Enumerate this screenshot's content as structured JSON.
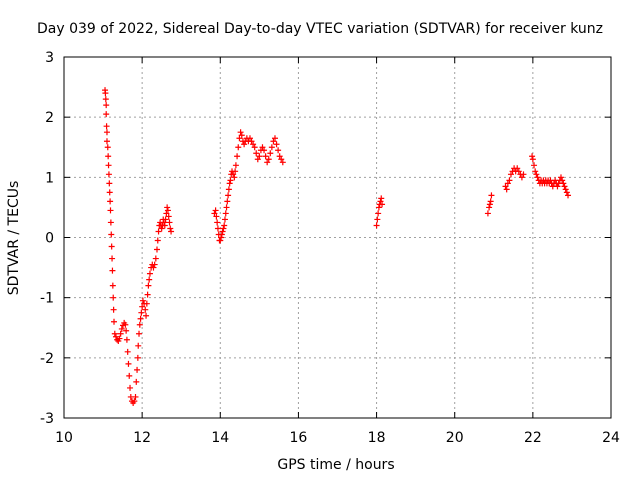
{
  "chart_data": {
    "type": "scatter",
    "title": "Day 039 of 2022, Sidereal Day-to-day VTEC variation (SDTVAR) for receiver kunz",
    "xlabel": "GPS time / hours",
    "ylabel": "SDTVAR / TECUs",
    "xlim": [
      10,
      24
    ],
    "ylim": [
      -3,
      3
    ],
    "xticks": [
      10,
      12,
      14,
      16,
      18,
      20,
      22,
      24
    ],
    "yticks": [
      -3,
      -2,
      -1,
      0,
      1,
      2,
      3
    ],
    "grid": true,
    "marker": "+",
    "color": "#ff0000",
    "series": [
      {
        "name": "SDTVAR",
        "points": [
          [
            11.05,
            2.45
          ],
          [
            11.06,
            2.4
          ],
          [
            11.07,
            2.3
          ],
          [
            11.08,
            2.2
          ],
          [
            11.08,
            2.05
          ],
          [
            11.09,
            1.85
          ],
          [
            11.1,
            1.75
          ],
          [
            11.1,
            1.6
          ],
          [
            11.12,
            1.5
          ],
          [
            11.13,
            1.35
          ],
          [
            11.14,
            1.2
          ],
          [
            11.15,
            1.05
          ],
          [
            11.16,
            0.9
          ],
          [
            11.17,
            0.75
          ],
          [
            11.18,
            0.6
          ],
          [
            11.19,
            0.45
          ],
          [
            11.2,
            0.25
          ],
          [
            11.21,
            0.05
          ],
          [
            11.22,
            -0.15
          ],
          [
            11.23,
            -0.35
          ],
          [
            11.24,
            -0.55
          ],
          [
            11.25,
            -0.8
          ],
          [
            11.26,
            -1.0
          ],
          [
            11.27,
            -1.2
          ],
          [
            11.28,
            -1.4
          ],
          [
            11.3,
            -1.6
          ],
          [
            11.33,
            -1.65
          ],
          [
            11.36,
            -1.7
          ],
          [
            11.39,
            -1.72
          ],
          [
            11.42,
            -1.68
          ],
          [
            11.45,
            -1.6
          ],
          [
            11.48,
            -1.52
          ],
          [
            11.51,
            -1.46
          ],
          [
            11.54,
            -1.42
          ],
          [
            11.57,
            -1.45
          ],
          [
            11.59,
            -1.55
          ],
          [
            11.61,
            -1.7
          ],
          [
            11.63,
            -1.9
          ],
          [
            11.65,
            -2.1
          ],
          [
            11.67,
            -2.3
          ],
          [
            11.69,
            -2.5
          ],
          [
            11.71,
            -2.65
          ],
          [
            11.74,
            -2.72
          ],
          [
            11.77,
            -2.75
          ],
          [
            11.8,
            -2.72
          ],
          [
            11.83,
            -2.65
          ],
          [
            11.85,
            -2.4
          ],
          [
            11.87,
            -2.2
          ],
          [
            11.89,
            -2.0
          ],
          [
            11.9,
            -1.8
          ],
          [
            11.92,
            -1.6
          ],
          [
            11.94,
            -1.45
          ],
          [
            11.96,
            -1.35
          ],
          [
            11.98,
            -1.25
          ],
          [
            12.0,
            -1.15
          ],
          [
            12.02,
            -1.05
          ],
          [
            12.05,
            -1.1
          ],
          [
            12.08,
            -1.2
          ],
          [
            12.1,
            -1.3
          ],
          [
            12.12,
            -1.1
          ],
          [
            12.14,
            -0.95
          ],
          [
            12.16,
            -0.8
          ],
          [
            12.18,
            -0.7
          ],
          [
            12.2,
            -0.6
          ],
          [
            12.23,
            -0.5
          ],
          [
            12.26,
            -0.45
          ],
          [
            12.29,
            -0.5
          ],
          [
            12.32,
            -0.45
          ],
          [
            12.35,
            -0.35
          ],
          [
            12.38,
            -0.2
          ],
          [
            12.4,
            -0.05
          ],
          [
            12.42,
            0.1
          ],
          [
            12.44,
            0.2
          ],
          [
            12.46,
            0.25
          ],
          [
            12.48,
            0.2
          ],
          [
            12.5,
            0.15
          ],
          [
            12.52,
            0.2
          ],
          [
            12.54,
            0.3
          ],
          [
            12.56,
            0.25
          ],
          [
            12.58,
            0.2
          ],
          [
            12.6,
            0.3
          ],
          [
            12.62,
            0.4
          ],
          [
            12.64,
            0.5
          ],
          [
            12.66,
            0.45
          ],
          [
            12.68,
            0.35
          ],
          [
            12.7,
            0.25
          ],
          [
            12.72,
            0.15
          ],
          [
            12.74,
            0.1
          ],
          [
            13.85,
            0.4
          ],
          [
            13.88,
            0.45
          ],
          [
            13.9,
            0.35
          ],
          [
            13.92,
            0.25
          ],
          [
            13.94,
            0.15
          ],
          [
            13.96,
            0.05
          ],
          [
            13.98,
            -0.05
          ],
          [
            14.0,
            -0.05
          ],
          [
            14.02,
            0.0
          ],
          [
            14.04,
            0.05
          ],
          [
            14.06,
            0.1
          ],
          [
            14.08,
            0.15
          ],
          [
            14.1,
            0.2
          ],
          [
            14.12,
            0.3
          ],
          [
            14.14,
            0.4
          ],
          [
            14.16,
            0.5
          ],
          [
            14.18,
            0.6
          ],
          [
            14.2,
            0.7
          ],
          [
            14.22,
            0.8
          ],
          [
            14.24,
            0.9
          ],
          [
            14.26,
            0.95
          ],
          [
            14.28,
            1.05
          ],
          [
            14.3,
            1.1
          ],
          [
            14.33,
            1.05
          ],
          [
            14.36,
            1.0
          ],
          [
            14.38,
            1.1
          ],
          [
            14.4,
            1.2
          ],
          [
            14.43,
            1.35
          ],
          [
            14.46,
            1.5
          ],
          [
            14.49,
            1.65
          ],
          [
            14.52,
            1.75
          ],
          [
            14.55,
            1.7
          ],
          [
            14.58,
            1.6
          ],
          [
            14.61,
            1.55
          ],
          [
            14.64,
            1.6
          ],
          [
            14.68,
            1.65
          ],
          [
            14.72,
            1.6
          ],
          [
            14.76,
            1.65
          ],
          [
            14.8,
            1.6
          ],
          [
            14.84,
            1.55
          ],
          [
            14.88,
            1.5
          ],
          [
            14.92,
            1.4
          ],
          [
            14.96,
            1.3
          ],
          [
            15.0,
            1.35
          ],
          [
            15.04,
            1.45
          ],
          [
            15.08,
            1.5
          ],
          [
            15.12,
            1.45
          ],
          [
            15.16,
            1.35
          ],
          [
            15.2,
            1.25
          ],
          [
            15.24,
            1.3
          ],
          [
            15.28,
            1.4
          ],
          [
            15.32,
            1.5
          ],
          [
            15.36,
            1.6
          ],
          [
            15.4,
            1.65
          ],
          [
            15.44,
            1.55
          ],
          [
            15.48,
            1.45
          ],
          [
            15.52,
            1.35
          ],
          [
            15.56,
            1.3
          ],
          [
            15.6,
            1.25
          ],
          [
            18.0,
            0.2
          ],
          [
            18.02,
            0.3
          ],
          [
            18.04,
            0.4
          ],
          [
            18.06,
            0.5
          ],
          [
            18.08,
            0.55
          ],
          [
            18.1,
            0.6
          ],
          [
            18.12,
            0.65
          ],
          [
            18.14,
            0.55
          ],
          [
            20.85,
            0.4
          ],
          [
            20.88,
            0.5
          ],
          [
            20.9,
            0.55
          ],
          [
            20.92,
            0.6
          ],
          [
            20.94,
            0.7
          ],
          [
            21.3,
            0.85
          ],
          [
            21.33,
            0.8
          ],
          [
            21.36,
            0.9
          ],
          [
            21.4,
            0.95
          ],
          [
            21.44,
            1.05
          ],
          [
            21.48,
            1.1
          ],
          [
            21.52,
            1.15
          ],
          [
            21.56,
            1.1
          ],
          [
            21.6,
            1.15
          ],
          [
            21.64,
            1.1
          ],
          [
            21.68,
            1.05
          ],
          [
            21.72,
            1.0
          ],
          [
            21.76,
            1.05
          ],
          [
            21.98,
            1.35
          ],
          [
            22.0,
            1.3
          ],
          [
            22.03,
            1.2
          ],
          [
            22.06,
            1.1
          ],
          [
            22.09,
            1.05
          ],
          [
            22.12,
            1.0
          ],
          [
            22.15,
            0.95
          ],
          [
            22.18,
            0.9
          ],
          [
            22.21,
            0.95
          ],
          [
            22.24,
            0.9
          ],
          [
            22.27,
            0.95
          ],
          [
            22.3,
            0.9
          ],
          [
            22.33,
            0.95
          ],
          [
            22.36,
            0.9
          ],
          [
            22.39,
            0.95
          ],
          [
            22.42,
            0.9
          ],
          [
            22.45,
            0.95
          ],
          [
            22.48,
            0.9
          ],
          [
            22.51,
            0.85
          ],
          [
            22.54,
            0.9
          ],
          [
            22.57,
            0.95
          ],
          [
            22.6,
            0.9
          ],
          [
            22.63,
            0.85
          ],
          [
            22.66,
            0.9
          ],
          [
            22.69,
            0.95
          ],
          [
            22.72,
            1.0
          ],
          [
            22.75,
            0.95
          ],
          [
            22.78,
            0.9
          ],
          [
            22.81,
            0.85
          ],
          [
            22.84,
            0.8
          ],
          [
            22.87,
            0.75
          ],
          [
            22.9,
            0.7
          ]
        ]
      }
    ]
  }
}
